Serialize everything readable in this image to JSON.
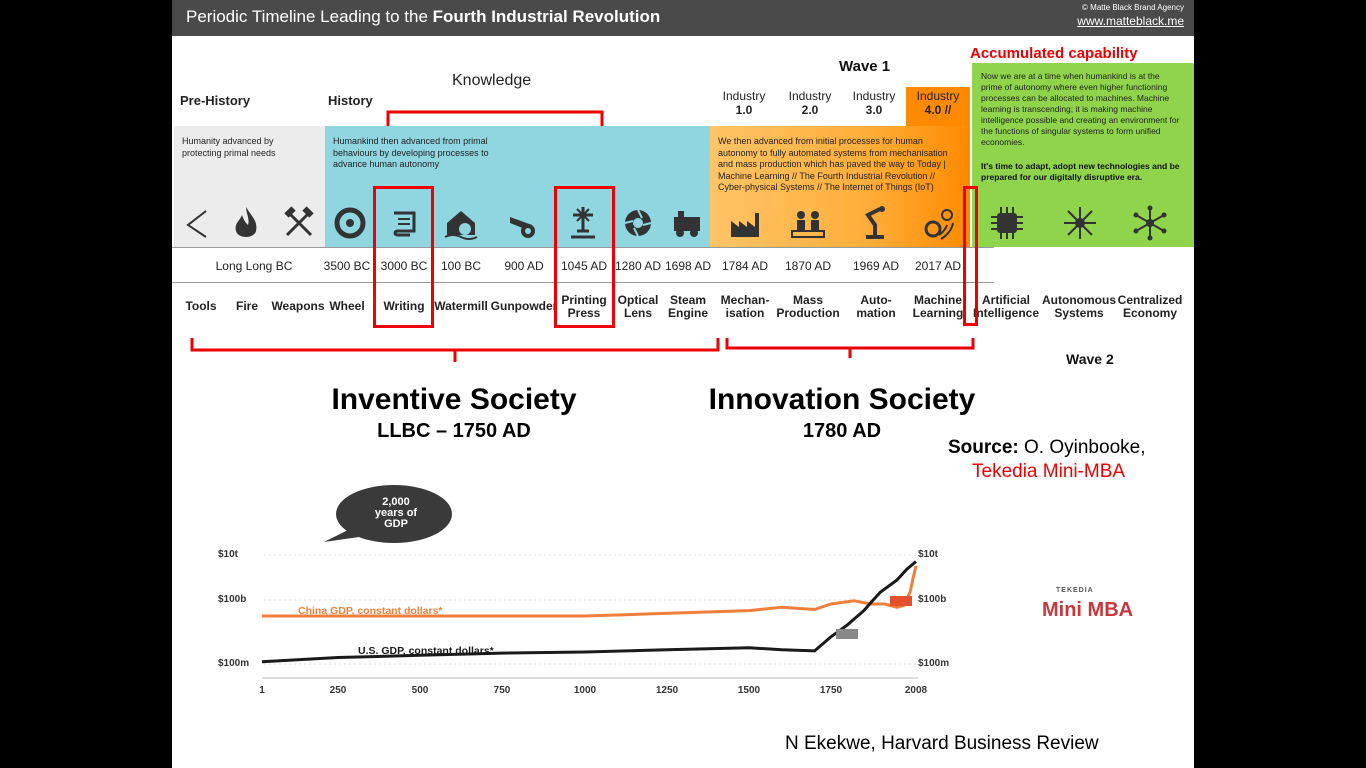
{
  "header": {
    "title_normal": "Periodic Timeline Leading to the ",
    "title_bold": "Fourth Industrial Revolution",
    "copyright": "© Matte Black Brand Agency",
    "url": "www.matteblack.me"
  },
  "labels": {
    "prehistory": "Pre-History",
    "history": "History",
    "knowledge": "Knowledge",
    "wave1": "Wave 1",
    "wave2": "Wave 2",
    "accumulated": "Accumulated capability"
  },
  "industries": [
    {
      "name": "Industry",
      "version": "1.0"
    },
    {
      "name": "Industry",
      "version": "2.0"
    },
    {
      "name": "Industry",
      "version": "3.0"
    },
    {
      "name": "Industry",
      "version": "4.0 //"
    }
  ],
  "panels": {
    "prehistory": "Humanity advanced by protecting primal needs",
    "history": "Humankind then advanced from primal behaviours by developing processes to advance human autonomy",
    "industry": "We then advanced from initial processes for human autonomy to fully automated systems from mechanisation and mass production which has paved the way to Today | Machine Learning // The Fourth Industrial Revolution // Cyber-physical Systems // The  Internet of Things (IoT)",
    "future_1": "Now we are at a time when humankind is at the prime of autonomy where even higher functioning processes can be allocated to machines. Machine learning is transcending; it is making machine intelligence possible and creating an environment for the functions of singular systems to form unified economies.",
    "future_2": "It's time to adapt, adopt new technologies and be prepared for our digitally disruptive era."
  },
  "dates": [
    "Long Long BC",
    "3500 BC",
    "3000 BC",
    "100 BC",
    "900 AD",
    "1045 AD",
    "1280 AD",
    "1698 AD",
    "1784 AD",
    "1870 AD",
    "1969 AD",
    "2017 AD"
  ],
  "items": [
    {
      "l1": "Tools",
      "l2": ""
    },
    {
      "l1": "Fire",
      "l2": ""
    },
    {
      "l1": "Weapons",
      "l2": ""
    },
    {
      "l1": "Wheel",
      "l2": ""
    },
    {
      "l1": "Writing",
      "l2": ""
    },
    {
      "l1": "Watermill",
      "l2": ""
    },
    {
      "l1": "Gunpowder",
      "l2": ""
    },
    {
      "l1": "Printing",
      "l2": "Press"
    },
    {
      "l1": "Optical",
      "l2": "Lens"
    },
    {
      "l1": "Steam",
      "l2": "Engine"
    },
    {
      "l1": "Mechan-",
      "l2": "isation"
    },
    {
      "l1": "Mass",
      "l2": "Production"
    },
    {
      "l1": "Auto-",
      "l2": "mation"
    },
    {
      "l1": "Machine",
      "l2": "Learning"
    },
    {
      "l1": "Artificial",
      "l2": "Intelligence"
    },
    {
      "l1": "Autonomous",
      "l2": "Systems"
    },
    {
      "l1": "Centralized",
      "l2": "Economy"
    }
  ],
  "societies": {
    "inventive_title": "Inventive Society",
    "inventive_range": "LLBC – 1750 AD",
    "innovation_title": "Innovation Society",
    "innovation_range": "1780 AD"
  },
  "source": {
    "prefix": "Source:",
    "author": " O. Oyinbooke,",
    "org": "Tekedia Mini-MBA"
  },
  "credit": "N Ekekwe, Harvard Business Review",
  "logo": {
    "small": "TEKEDIA",
    "big": "Mini MBA"
  },
  "bubble": {
    "l1": "2,000",
    "l2": "years of",
    "l3": "GDP"
  },
  "colors": {
    "prehistory": "#ececec",
    "history": "#8fd6e0",
    "industry": "#ffb84d",
    "industry4": "#ff8a00",
    "future": "#8fd44a",
    "accent": "#e00000",
    "china": "#f07f3c",
    "us": "#1a1a1a"
  },
  "chart_data": {
    "type": "line",
    "title": "2,000 years of GDP",
    "xlabel": "",
    "ylabel": "",
    "x_ticks": [
      1,
      250,
      500,
      750,
      1000,
      1250,
      1500,
      1750,
      2008
    ],
    "y_ticks": [
      "$100m",
      "$100b",
      "$10t"
    ],
    "y_scale": "log",
    "ylim_log10": [
      8,
      13
    ],
    "series": [
      {
        "name": "China GDP, constant dollars*",
        "x": [
          1,
          500,
          1000,
          1300,
          1500,
          1600,
          1700,
          1750,
          1820,
          1870,
          1913,
          1950,
          1973,
          1990,
          2000,
          2008
        ],
        "log10": [
          10.2,
          10.2,
          10.2,
          10.35,
          10.45,
          10.6,
          10.5,
          10.75,
          10.9,
          10.75,
          10.75,
          10.6,
          10.7,
          11.3,
          12.0,
          12.5
        ]
      },
      {
        "name": "U.S. GDP, constant dollars*",
        "x": [
          1,
          250,
          500,
          750,
          1000,
          1250,
          1500,
          1600,
          1700,
          1750,
          1800,
          1850,
          1870,
          1900,
          1950,
          1980,
          2008
        ],
        "log10": [
          8.1,
          8.3,
          8.4,
          8.5,
          8.55,
          8.65,
          8.75,
          8.65,
          8.6,
          9.25,
          9.8,
          10.45,
          10.8,
          11.3,
          11.85,
          12.35,
          12.7
        ]
      }
    ]
  }
}
